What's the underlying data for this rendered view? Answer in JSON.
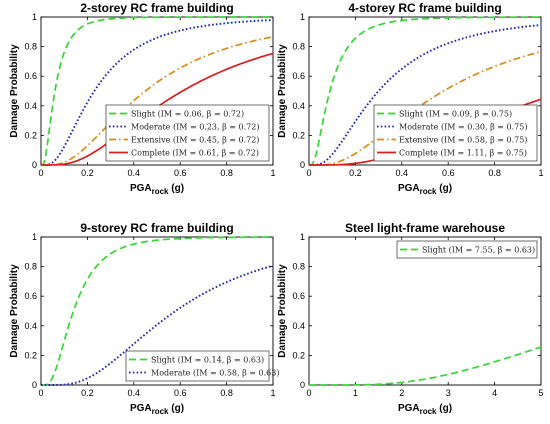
{
  "colors": {
    "slight": "#33d633",
    "moderate": "#1f1fb4",
    "extensive": "#d98a1a",
    "complete": "#dd1d1d"
  },
  "chart_data": [
    {
      "type": "line",
      "title": "2-storey RC frame building",
      "xlabel": "PGA",
      "xlabel_sub": "rock",
      "xlabel_unit": " (g)",
      "ylabel": "Damage Probability",
      "xlim": [
        0,
        1
      ],
      "ylim": [
        0,
        1
      ],
      "xticks": [
        "0",
        "0.2",
        "0.4",
        "0.6",
        "0.8",
        "1"
      ],
      "yticks": [
        "0",
        "0.2",
        "0.4",
        "0.6",
        "0.8",
        "1"
      ],
      "legend_position": "bottom-right",
      "series": [
        {
          "name": "Slight",
          "legend": "Slight (IM = 0.06, β = 0.72)",
          "median": 0.06,
          "beta": 0.72,
          "style": "dash",
          "color_key": "slight"
        },
        {
          "name": "Moderate",
          "legend": "Moderate (IM = 0.23, β = 0.72)",
          "median": 0.23,
          "beta": 0.72,
          "style": "dot",
          "color_key": "moderate"
        },
        {
          "name": "Extensive",
          "legend": "Extensive (IM = 0.45, β = 0.72)",
          "median": 0.45,
          "beta": 0.72,
          "style": "dashdot",
          "color_key": "extensive"
        },
        {
          "name": "Complete",
          "legend": "Complete (IM = 0.61, β = 0.72)",
          "median": 0.61,
          "beta": 0.72,
          "style": "solid",
          "color_key": "complete"
        }
      ]
    },
    {
      "type": "line",
      "title": "4-storey RC frame building",
      "xlabel": "PGA",
      "xlabel_sub": "rock",
      "xlabel_unit": " (g)",
      "ylabel": "Damage Probability",
      "xlim": [
        0,
        1
      ],
      "ylim": [
        0,
        1
      ],
      "xticks": [
        "0",
        "0.2",
        "0.4",
        "0.6",
        "0.8",
        "1"
      ],
      "yticks": [
        "0",
        "0.2",
        "0.4",
        "0.6",
        "0.8",
        "1"
      ],
      "legend_position": "bottom-right",
      "series": [
        {
          "name": "Slight",
          "legend": "Slight (IM = 0.09, β = 0.75)",
          "median": 0.09,
          "beta": 0.75,
          "style": "dash",
          "color_key": "slight"
        },
        {
          "name": "Moderate",
          "legend": "Moderate (IM = 0.30, β = 0.75)",
          "median": 0.3,
          "beta": 0.75,
          "style": "dot",
          "color_key": "moderate"
        },
        {
          "name": "Extensive",
          "legend": "Extensive (IM = 0.58, β = 0.75)",
          "median": 0.58,
          "beta": 0.75,
          "style": "dashdot",
          "color_key": "extensive"
        },
        {
          "name": "Complete",
          "legend": "Complete (IM = 1.11, β = 0.75)",
          "median": 1.11,
          "beta": 0.75,
          "style": "solid",
          "color_key": "complete"
        }
      ]
    },
    {
      "type": "line",
      "title": "9-storey RC frame building",
      "xlabel": "PGA",
      "xlabel_sub": "rock",
      "xlabel_unit": " (g)",
      "ylabel": "Damage Probability",
      "xlim": [
        0,
        1
      ],
      "ylim": [
        0,
        1
      ],
      "xticks": [
        "0",
        "0.2",
        "0.4",
        "0.6",
        "0.8",
        "1"
      ],
      "yticks": [
        "0",
        "0.2",
        "0.4",
        "0.6",
        "0.8",
        "1"
      ],
      "legend_position": "bottom-right",
      "series": [
        {
          "name": "Slight",
          "legend": "Slight (IM = 0.14, β = 0.63)",
          "median": 0.14,
          "beta": 0.63,
          "style": "dash",
          "color_key": "slight"
        },
        {
          "name": "Moderate",
          "legend": "Moderate (IM = 0.58, β = 0.63)",
          "median": 0.58,
          "beta": 0.63,
          "style": "dot",
          "color_key": "moderate"
        }
      ]
    },
    {
      "type": "line",
      "title": "Steel light-frame warehouse",
      "xlabel": "PGA",
      "xlabel_sub": "rock",
      "xlabel_unit": " (g)",
      "ylabel": "Damage Probability",
      "xlim": [
        0,
        5
      ],
      "ylim": [
        0,
        1
      ],
      "xticks": [
        "0",
        "1",
        "2",
        "3",
        "4",
        "5"
      ],
      "yticks": [
        "0",
        "0.2",
        "0.4",
        "0.6",
        "0.8",
        "1"
      ],
      "legend_position": "top-right",
      "series": [
        {
          "name": "Slight",
          "legend": "Slight (IM = 7.55, β = 0.63)",
          "median": 7.55,
          "beta": 0.63,
          "style": "dash",
          "color_key": "slight"
        }
      ]
    }
  ]
}
